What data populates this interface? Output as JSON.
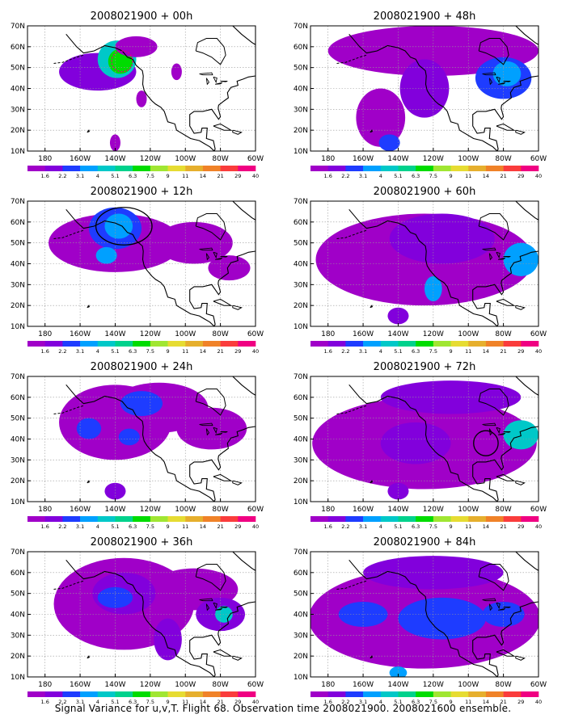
{
  "chart_data": {
    "type": "map-contour",
    "variable": "Signal variance (u, v, T)",
    "x_range": [
      -190,
      -60
    ],
    "y_range": [
      10,
      70
    ],
    "x_ticks": [
      "180",
      "160W",
      "140W",
      "120W",
      "100W",
      "80W",
      "60W"
    ],
    "y_ticks": [
      "10N",
      "20N",
      "30N",
      "40N",
      "50N",
      "60N",
      "70N"
    ],
    "grid": true,
    "colorbar": {
      "levels": [
        "1.6",
        "2.2",
        "3.1",
        "4",
        "5.1",
        "6.3",
        "7.5",
        "9",
        "11",
        "14",
        "21",
        "29",
        "40"
      ],
      "colors": [
        "#a000c8",
        "#8200dc",
        "#1e3cff",
        "#00a0ff",
        "#00c8c8",
        "#00d28c",
        "#00dc00",
        "#a0e632",
        "#e6dc32",
        "#e6af2d",
        "#f08228",
        "#fa3c3c",
        "#f00082"
      ]
    },
    "panels": [
      {
        "title": "2008021900 + 00h",
        "lead_hours": 0,
        "blobs": [
          {
            "lon": -150,
            "lat": 48,
            "rlon": 22,
            "rlat": 9,
            "level": 1
          },
          {
            "lon": -139,
            "lat": 54,
            "rlon": 11,
            "rlat": 9,
            "level": 4
          },
          {
            "lon": -137,
            "lat": 53,
            "rlon": 7,
            "rlat": 6,
            "level": 6
          },
          {
            "lon": -128,
            "lat": 60,
            "rlon": 12,
            "rlat": 5,
            "level": 0
          },
          {
            "lon": -125,
            "lat": 35,
            "rlon": 3,
            "rlat": 4,
            "level": 0
          },
          {
            "lon": -140,
            "lat": 14,
            "rlon": 3,
            "rlat": 4,
            "level": 0
          },
          {
            "lon": -105,
            "lat": 48,
            "rlon": 3,
            "rlat": 4,
            "level": 0
          }
        ],
        "region_outline": {
          "lon": -136,
          "lat": 53,
          "rlon": 6,
          "rlat": 5
        }
      },
      {
        "title": "2008021900 + 12h",
        "lead_hours": 12,
        "blobs": [
          {
            "lon": -140,
            "lat": 50,
            "rlon": 38,
            "rlat": 14,
            "level": 0
          },
          {
            "lon": -140,
            "lat": 57,
            "rlon": 15,
            "rlat": 10,
            "level": 2
          },
          {
            "lon": -138,
            "lat": 58,
            "rlon": 8,
            "rlat": 6,
            "level": 3
          },
          {
            "lon": -145,
            "lat": 44,
            "rlon": 6,
            "rlat": 4,
            "level": 3
          },
          {
            "lon": -95,
            "lat": 50,
            "rlon": 22,
            "rlat": 10,
            "level": 0
          },
          {
            "lon": -75,
            "lat": 38,
            "rlon": 12,
            "rlat": 6,
            "level": 0
          }
        ],
        "region_outline": {
          "lon": -135,
          "lat": 58,
          "rlon": 16,
          "rlat": 9
        }
      },
      {
        "title": "2008021900 + 24h",
        "lead_hours": 24,
        "blobs": [
          {
            "lon": -140,
            "lat": 48,
            "rlon": 32,
            "rlat": 18,
            "level": 0
          },
          {
            "lon": -115,
            "lat": 55,
            "rlon": 28,
            "rlat": 12,
            "level": 0
          },
          {
            "lon": -125,
            "lat": 57,
            "rlon": 12,
            "rlat": 6,
            "level": 2
          },
          {
            "lon": -155,
            "lat": 45,
            "rlon": 7,
            "rlat": 5,
            "level": 2
          },
          {
            "lon": -132,
            "lat": 41,
            "rlon": 6,
            "rlat": 4,
            "level": 2
          },
          {
            "lon": -140,
            "lat": 15,
            "rlon": 6,
            "rlat": 4,
            "level": 1
          },
          {
            "lon": -85,
            "lat": 45,
            "rlon": 20,
            "rlat": 10,
            "level": 0
          }
        ],
        "region_outline": null
      },
      {
        "title": "2008021900 + 36h",
        "lead_hours": 36,
        "blobs": [
          {
            "lon": -135,
            "lat": 45,
            "rlon": 40,
            "rlat": 22,
            "level": 0
          },
          {
            "lon": -95,
            "lat": 52,
            "rlon": 25,
            "rlat": 10,
            "level": 0
          },
          {
            "lon": -135,
            "lat": 50,
            "rlon": 18,
            "rlat": 10,
            "level": 1
          },
          {
            "lon": -140,
            "lat": 48,
            "rlon": 10,
            "rlat": 5,
            "level": 2
          },
          {
            "lon": -80,
            "lat": 40,
            "rlon": 14,
            "rlat": 8,
            "level": 1
          },
          {
            "lon": -78,
            "lat": 40,
            "rlon": 5,
            "rlat": 4,
            "level": 4
          },
          {
            "lon": -110,
            "lat": 28,
            "rlon": 8,
            "rlat": 10,
            "level": 1
          }
        ],
        "region_outline": null
      },
      {
        "title": "2008021900 + 48h",
        "lead_hours": 48,
        "blobs": [
          {
            "lon": -120,
            "lat": 58,
            "rlon": 60,
            "rlat": 12,
            "level": 0
          },
          {
            "lon": -150,
            "lat": 26,
            "rlon": 14,
            "rlat": 14,
            "level": 0
          },
          {
            "lon": -125,
            "lat": 40,
            "rlon": 14,
            "rlat": 14,
            "level": 1
          },
          {
            "lon": -80,
            "lat": 45,
            "rlon": 16,
            "rlat": 10,
            "level": 2
          },
          {
            "lon": -78,
            "lat": 47,
            "rlon": 8,
            "rlat": 6,
            "level": 3
          },
          {
            "lon": -145,
            "lat": 14,
            "rlon": 6,
            "rlat": 4,
            "level": 2
          }
        ],
        "region_outline": null
      },
      {
        "title": "2008021900 + 60h",
        "lead_hours": 60,
        "blobs": [
          {
            "lon": -125,
            "lat": 42,
            "rlon": 62,
            "rlat": 22,
            "level": 0
          },
          {
            "lon": -115,
            "lat": 52,
            "rlon": 30,
            "rlat": 12,
            "level": 1
          },
          {
            "lon": -70,
            "lat": 42,
            "rlon": 10,
            "rlat": 8,
            "level": 3
          },
          {
            "lon": -120,
            "lat": 28,
            "rlon": 5,
            "rlat": 6,
            "level": 3
          },
          {
            "lon": -140,
            "lat": 15,
            "rlon": 6,
            "rlat": 4,
            "level": 1
          }
        ],
        "region_outline": null
      },
      {
        "title": "2008021900 + 72h",
        "lead_hours": 72,
        "blobs": [
          {
            "lon": -125,
            "lat": 38,
            "rlon": 64,
            "rlat": 22,
            "level": 0
          },
          {
            "lon": -110,
            "lat": 60,
            "rlon": 40,
            "rlat": 8,
            "level": 1
          },
          {
            "lon": -130,
            "lat": 38,
            "rlon": 20,
            "rlat": 10,
            "level": 1
          },
          {
            "lon": -70,
            "lat": 42,
            "rlon": 10,
            "rlat": 7,
            "level": 4
          },
          {
            "lon": -140,
            "lat": 15,
            "rlon": 6,
            "rlat": 4,
            "level": 1
          }
        ],
        "region_outline": {
          "lon": -90,
          "lat": 38,
          "rlon": 7,
          "rlat": 6
        }
      },
      {
        "title": "2008021900 + 84h",
        "lead_hours": 84,
        "blobs": [
          {
            "lon": -125,
            "lat": 38,
            "rlon": 66,
            "rlat": 24,
            "level": 0
          },
          {
            "lon": -120,
            "lat": 60,
            "rlon": 40,
            "rlat": 8,
            "level": 1
          },
          {
            "lon": -115,
            "lat": 38,
            "rlon": 25,
            "rlat": 10,
            "level": 2
          },
          {
            "lon": -160,
            "lat": 40,
            "rlon": 14,
            "rlat": 6,
            "level": 2
          },
          {
            "lon": -80,
            "lat": 40,
            "rlon": 12,
            "rlat": 6,
            "level": 2
          },
          {
            "lon": -140,
            "lat": 12,
            "rlon": 5,
            "rlat": 3,
            "level": 3
          }
        ],
        "region_outline": null
      }
    ]
  },
  "caption": "Signal Variance for u,v,T. Flight 68. Observation time 2008021900. 2008021600 ensemble."
}
